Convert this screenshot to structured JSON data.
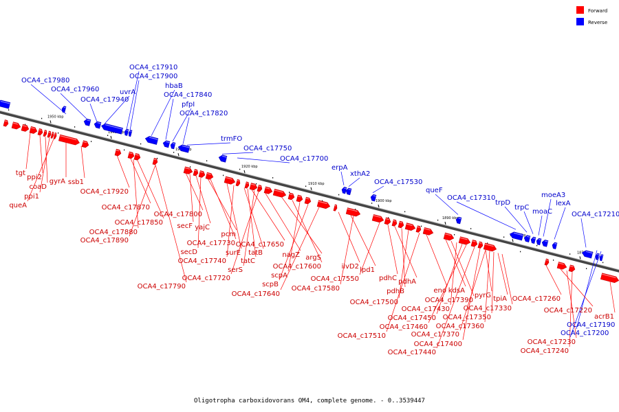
{
  "legend": {
    "forward": {
      "label": "Forward",
      "color": "#ff0000"
    },
    "reverse": {
      "label": "Reverse",
      "color": "#0000ff"
    }
  },
  "caption": "Oligotropha carboxidovorans OM4, complete genome. - 0..3539447",
  "axis_ticks": [
    "1950 kbp",
    "1940 kbp",
    "1930 kbp",
    "1920 kbp",
    "1910 kbp",
    "1900 kbp",
    "1890 kbp",
    "1880 kbp",
    "1870 kbp"
  ],
  "reverse_labels": [
    "OCA4_c17980",
    "OCA4_c17960",
    "OCA4_c17940",
    "uvrA",
    "OCA4_c17910",
    "OCA4_c17900",
    "hbaB",
    "OCA4_c17840",
    "pfpI",
    "OCA4_c17820",
    "trmFO",
    "OCA4_c17750",
    "OCA4_c17700",
    "erpA",
    "xthA2",
    "OCA4_c17530",
    "queF",
    "OCA4_c17310",
    "trpD",
    "trpC",
    "moaC",
    "moeA3",
    "lexA",
    "OCA4_c17210",
    "OCA4_c17190",
    "OCA4_c17200"
  ],
  "forward_labels": [
    "tgt",
    "ppi2",
    "coaD",
    "ppi1",
    "queA",
    "gyrA",
    "ssb1",
    "OCA4_c17920",
    "OCA4_c17870",
    "OCA4_c17850",
    "OCA4_c17880",
    "OCA4_c17890",
    "OCA4_c17800",
    "secF",
    "yajC",
    "pcm",
    "secD",
    "OCA4_c17730",
    "surE",
    "OCA4_c17740",
    "tatB",
    "OCA4_c17650",
    "tatC",
    "serS",
    "OCA4_c17720",
    "nagZ",
    "argS",
    "OCA4_c17600",
    "scpA",
    "scpB",
    "OCA4_c17640",
    "OCA4_c17790",
    "ilvD2",
    "lpd1",
    "OCA4_c17550",
    "OCA4_c17580",
    "pdhC",
    "pdhA",
    "pdhB",
    "OCA4_c17500",
    "OCA4_c17510",
    "eno",
    "kdsA",
    "OCA4_c17390",
    "OCA4_c17430",
    "OCA4_c17450",
    "OCA4_c17460",
    "OCA4_c17440",
    "OCA4_c17400",
    "OCA4_c17370",
    "OCA4_c17360",
    "OCA4_c17350",
    "pyrG",
    "tpiA",
    "OCA4_c17330",
    "OCA4_c17260",
    "OCA4_c17220",
    "OCA4_c17230",
    "OCA4_c17240",
    "acrB1"
  ]
}
